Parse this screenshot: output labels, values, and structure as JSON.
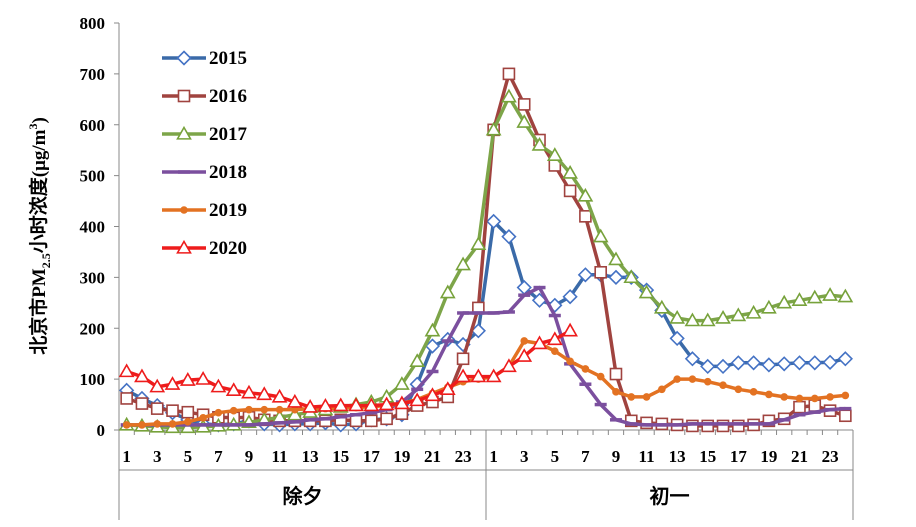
{
  "chart_data": {
    "type": "line",
    "ylabel_main": "北京市PM",
    "ylabel_sub": "2.5",
    "ylabel_rest": "小时浓度(μg/m",
    "ylabel_sup": "3",
    "ylabel_close": ")",
    "ylim": [
      0,
      800
    ],
    "yticks": [
      "0",
      "100",
      "200",
      "300",
      "400",
      "500",
      "600",
      "700",
      "800"
    ],
    "x_hours": [
      1,
      2,
      3,
      4,
      5,
      6,
      7,
      8,
      9,
      10,
      11,
      12,
      13,
      14,
      15,
      16,
      17,
      18,
      19,
      20,
      21,
      22,
      23,
      24,
      1,
      2,
      3,
      4,
      5,
      6,
      7,
      8,
      9,
      10,
      11,
      12,
      13,
      14,
      15,
      16,
      17,
      18,
      19,
      20,
      21,
      22,
      23,
      24
    ],
    "x_tick_labels": [
      "1",
      "3",
      "5",
      "7",
      "9",
      "11",
      "13",
      "15",
      "17",
      "19",
      "21",
      "23",
      "1",
      "3",
      "5",
      "7",
      "9",
      "11",
      "13",
      "15",
      "17",
      "19",
      "21",
      "23"
    ],
    "groups": [
      "除夕",
      "初一"
    ],
    "grid": false,
    "legend_position": "top-left",
    "series": [
      {
        "name": "2015",
        "color": "#4472C4",
        "line": "#3A6AA8",
        "marker": "diamond-open",
        "values": [
          78,
          62,
          48,
          34,
          20,
          12,
          10,
          12,
          18,
          12,
          10,
          12,
          12,
          14,
          10,
          12,
          20,
          22,
          30,
          90,
          165,
          178,
          168,
          195,
          410,
          380,
          280,
          255,
          245,
          262,
          305,
          305,
          300,
          300,
          275,
          235,
          180,
          140,
          125,
          125,
          132,
          132,
          128,
          130,
          132,
          132,
          133,
          140
        ]
      },
      {
        "name": "2016",
        "color": "#A0433F",
        "line": "#A0433F",
        "marker": "square-open",
        "values": [
          62,
          52,
          42,
          38,
          35,
          30,
          25,
          24,
          25,
          20,
          18,
          18,
          18,
          18,
          20,
          18,
          18,
          22,
          32,
          48,
          55,
          65,
          140,
          240,
          590,
          700,
          640,
          570,
          520,
          470,
          420,
          310,
          110,
          18,
          14,
          12,
          10,
          8,
          8,
          8,
          8,
          10,
          18,
          22,
          45,
          48,
          38,
          28
        ]
      },
      {
        "name": "2017",
        "color": "#77A23B",
        "line": "#7DA549",
        "marker": "triangle-open",
        "values": [
          10,
          8,
          6,
          5,
          5,
          6,
          8,
          10,
          15,
          20,
          25,
          30,
          35,
          40,
          45,
          50,
          55,
          65,
          90,
          135,
          195,
          270,
          325,
          365,
          590,
          655,
          605,
          560,
          540,
          505,
          460,
          380,
          335,
          300,
          270,
          240,
          220,
          215,
          215,
          220,
          225,
          230,
          240,
          250,
          255,
          260,
          265,
          262
        ]
      },
      {
        "name": "2018",
        "color": "#7B4F9E",
        "line": "#7B4F9E",
        "marker": "dash",
        "values": [
          10,
          10,
          10,
          10,
          10,
          10,
          10,
          10,
          10,
          12,
          14,
          16,
          20,
          22,
          26,
          30,
          34,
          40,
          55,
          80,
          115,
          175,
          230,
          230,
          230,
          232,
          265,
          280,
          225,
          130,
          90,
          50,
          20,
          12,
          10,
          10,
          10,
          12,
          12,
          12,
          12,
          12,
          12,
          20,
          30,
          35,
          40,
          42
        ]
      },
      {
        "name": "2019",
        "color": "#E37222",
        "line": "#E37222",
        "marker": "dot",
        "values": [
          10,
          10,
          12,
          12,
          16,
          24,
          34,
          38,
          40,
          40,
          40,
          40,
          42,
          42,
          44,
          44,
          46,
          48,
          52,
          60,
          72,
          84,
          95,
          100,
          105,
          125,
          175,
          170,
          155,
          135,
          120,
          105,
          75,
          65,
          65,
          80,
          100,
          100,
          95,
          88,
          80,
          75,
          70,
          65,
          62,
          62,
          65,
          68
        ]
      },
      {
        "name": "2020",
        "color": "#EE1C1C",
        "line": "#EE1C1C",
        "marker": "triangle-open",
        "values": [
          115,
          105,
          85,
          90,
          98,
          100,
          85,
          78,
          73,
          70,
          65,
          55,
          45,
          47,
          48,
          48,
          48,
          50,
          52,
          58,
          68,
          80,
          105,
          105,
          105,
          125,
          145,
          170,
          178,
          195
        ]
      }
    ]
  }
}
